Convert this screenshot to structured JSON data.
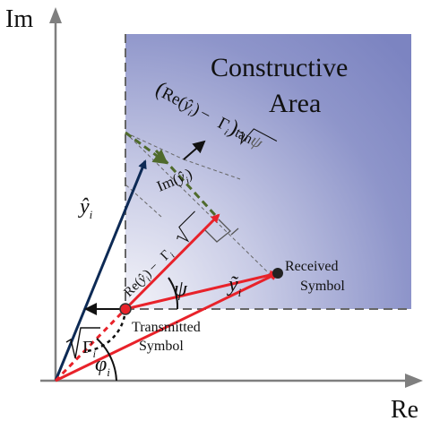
{
  "axes": {
    "x_label": "Re",
    "y_label": "Im"
  },
  "region": {
    "line1": "Constructive",
    "line2": "Area"
  },
  "points": {
    "received_line1": "Received",
    "received_line2": "Symbol",
    "transmitted_line1": "Transmitted",
    "transmitted_line2": "Symbol"
  },
  "vectors": {
    "y_hat": "ŷ",
    "y_hat_sub": "i",
    "y_tilde": "ỹ",
    "y_tilde_sub": "i"
  },
  "labels": {
    "phi": "φ",
    "phi_sub": "i",
    "psi_inner": "ψ",
    "psi_outer": "ψ",
    "sqrt_gamma_gamma": "Γ",
    "sqrt_gamma_sub": "i",
    "im_text": "Im",
    "im_arg": "ŷ",
    "im_arg_sub": "i",
    "re_minus_text": "Re",
    "re_minus_arg": "ŷ",
    "re_minus_arg_sub": "i",
    "re_minus_minus": "−",
    "re_minus_gamma": "Γ",
    "re_minus_gamma_sub": "i",
    "tan_expr_re": "Re",
    "tan_expr_arg": "ŷ",
    "tan_expr_arg_sub": "i",
    "tan_expr_minus": "−",
    "tan_expr_gamma": "Γ",
    "tan_expr_gamma_sub": "i",
    "tan_expr_tan": "tan",
    "tan_expr_psi": "ψ"
  },
  "colors": {
    "red_vector": "#e8222a",
    "navy_vector": "#0d2a55",
    "green_vector": "#4f6a2c",
    "region_fill_dark": "#7f87c4",
    "region_fill_light": "#f3f3f8",
    "axis": "#7f7f7f"
  }
}
